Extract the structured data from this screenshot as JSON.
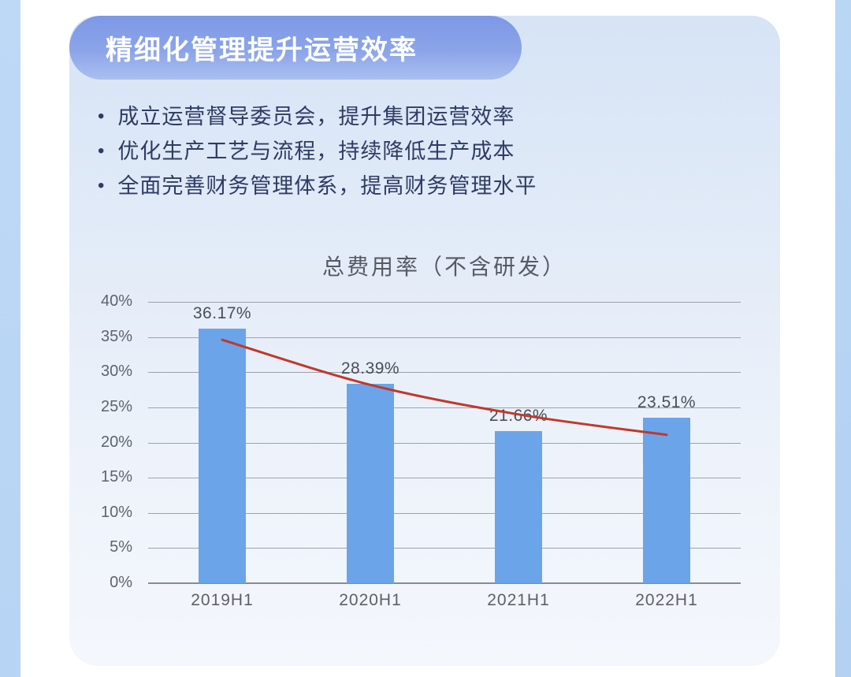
{
  "page": {
    "background": "#ffffff",
    "left_strip_color": "#bcd8f5",
    "right_strip_color": "#b5d3f4",
    "card_gradient_top": "#d6e4f6",
    "card_gradient_bottom": "#f4f7fc"
  },
  "header": {
    "title": "精细化管理提升运营效率",
    "banner_gradient_top": "#7d98e6",
    "banner_gradient_bottom": "#aabff0",
    "text_color": "#ffffff"
  },
  "bullets": {
    "marker": "•",
    "text_color": "#2e3c64",
    "items": [
      "成立运营督导委员会，提升集团运营效率",
      "优化生产工艺与流程，持续降低生产成本",
      "全面完善财务管理体系，提高财务管理水平"
    ]
  },
  "chart_data": {
    "type": "bar",
    "title": "总费用率（不含研发）",
    "title_color": "#565a63",
    "categories": [
      "2019H1",
      "2020H1",
      "2021H1",
      "2022H1"
    ],
    "values": [
      36.17,
      28.39,
      21.66,
      23.51
    ],
    "value_labels": [
      "36.17%",
      "28.39%",
      "21.66%",
      "23.51%"
    ],
    "yticks": [
      "0%",
      "5%",
      "10%",
      "15%",
      "20%",
      "25%",
      "30%",
      "35%",
      "40%"
    ],
    "ylim": [
      0,
      40
    ],
    "ytick_step": 5,
    "grid": true,
    "legend": "none",
    "xlabel": "",
    "ylabel": "",
    "bar_color": "#6ba4e9",
    "gridline_color": "#9ea2aa",
    "axis_tick_color": "#5f636b",
    "trend": {
      "type": "smooth-line",
      "color": "#c0392b",
      "values": [
        34.6,
        28.2,
        24.0,
        21.1
      ]
    }
  }
}
